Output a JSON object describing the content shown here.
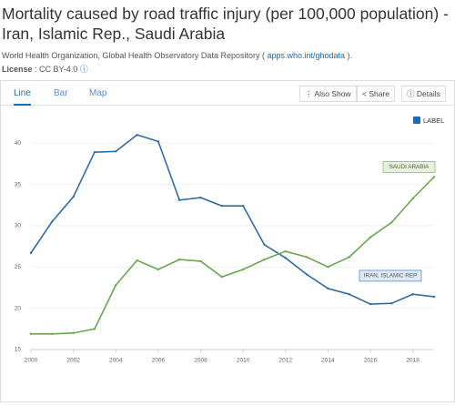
{
  "header": {
    "title": "Mortality caused by road traffic injury (per 100,000 population) - Iran, Islamic Rep., Saudi Arabia",
    "source": "World Health Organization, Global Health Observatory Data Repository (",
    "source_link": "apps.who.int/ghodata",
    "source_end": ").",
    "license_label": "License",
    "license": ": CC BY-4.0"
  },
  "tabs": [
    "Line",
    "Bar",
    "Map"
  ],
  "buttons": [
    "Also Show",
    "Share",
    "Details"
  ],
  "label_toggle": "LABEL",
  "chart_data": {
    "type": "line",
    "x": [
      2000,
      2001,
      2002,
      2003,
      2004,
      2005,
      2006,
      2007,
      2008,
      2009,
      2010,
      2011,
      2012,
      2013,
      2014,
      2015,
      2016,
      2017,
      2018,
      2019
    ],
    "xlim": [
      2000,
      2019
    ],
    "xticks": [
      2000,
      2002,
      2004,
      2006,
      2008,
      2010,
      2012,
      2014,
      2016,
      2018
    ],
    "ylim": [
      15,
      43
    ],
    "yticks": [
      15,
      20,
      25,
      30,
      35,
      40
    ],
    "series": [
      {
        "name": "IRAN, ISLAMIC REP",
        "color": "#2f6da6",
        "values": [
          26.7,
          30.5,
          33.5,
          38.9,
          39.0,
          41.0,
          40.2,
          33.1,
          33.4,
          32.4,
          32.4,
          27.7,
          26.1,
          24.1,
          22.4,
          21.7,
          20.5,
          20.6,
          21.7,
          21.4
        ]
      },
      {
        "name": "SAUDI ARABIA",
        "color": "#6aa84f",
        "values": [
          16.9,
          16.9,
          17.0,
          17.5,
          22.8,
          25.8,
          24.7,
          25.9,
          25.7,
          23.8,
          24.7,
          25.9,
          26.9,
          26.2,
          25.0,
          26.2,
          28.6,
          30.4,
          33.3,
          35.9
        ]
      }
    ]
  }
}
